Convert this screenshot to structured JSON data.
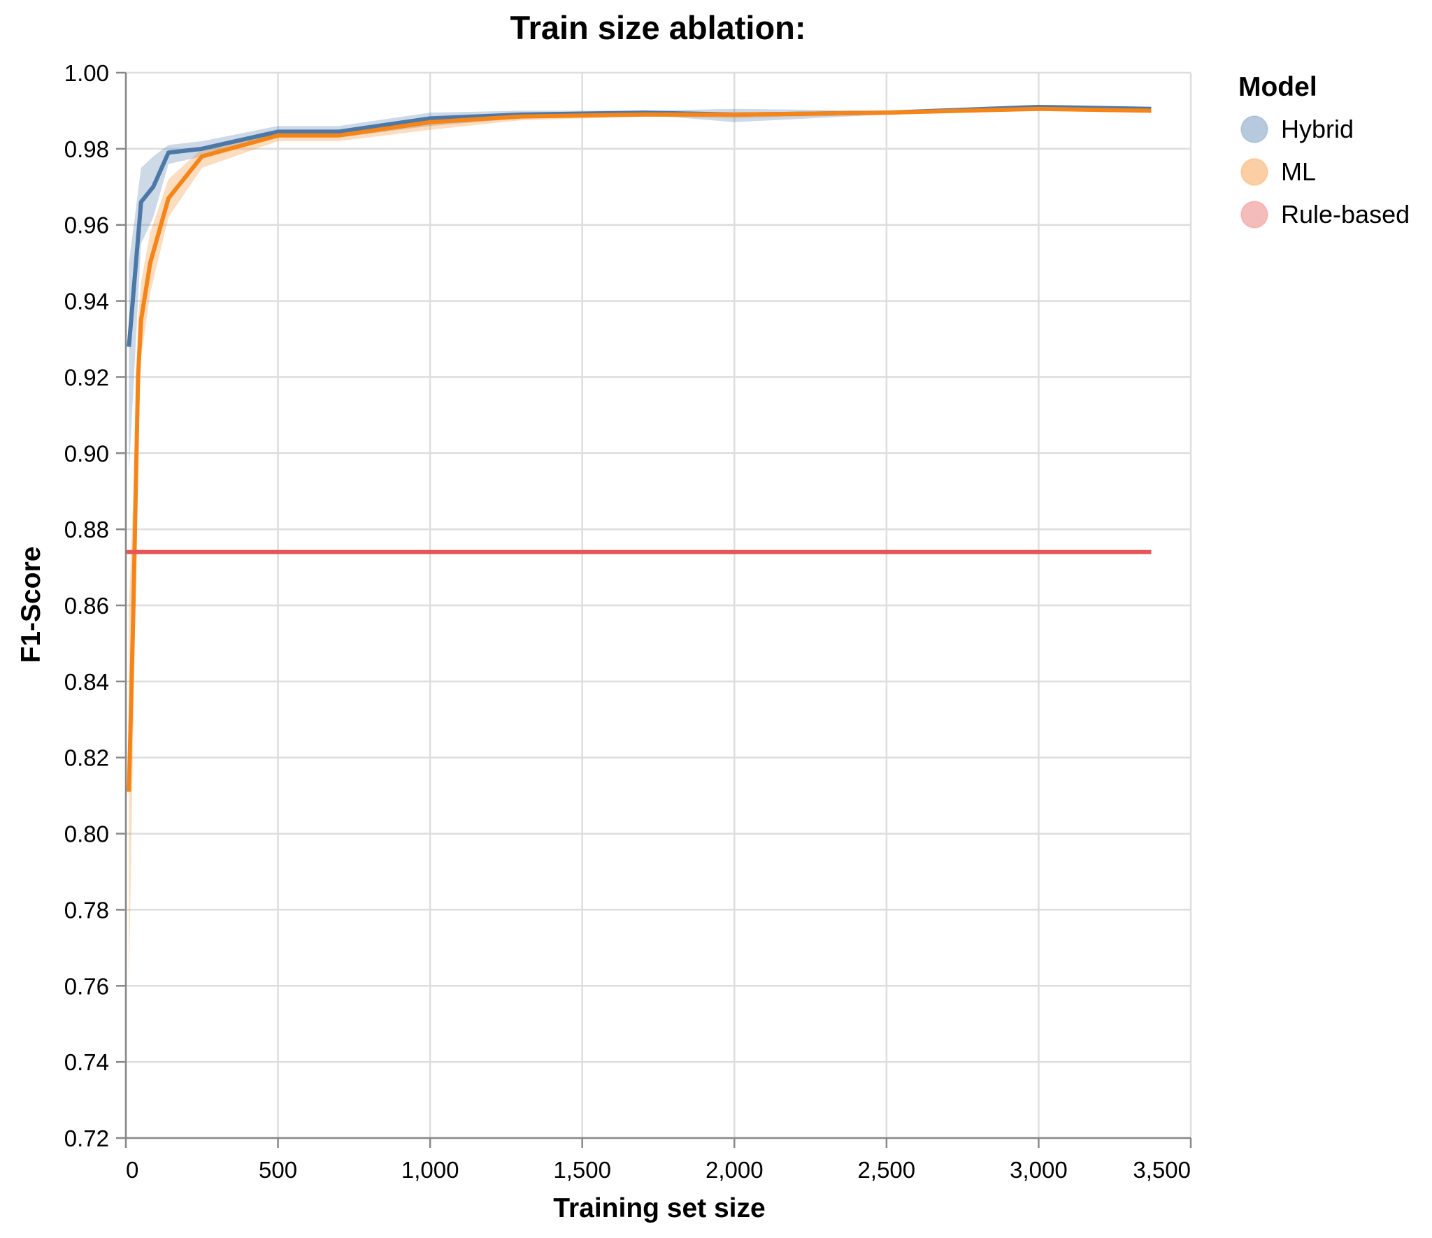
{
  "chart_data": {
    "type": "line",
    "title": "Train size ablation:",
    "xlabel": "Training set size",
    "ylabel": "F1-Score",
    "xlim": [
      0,
      3500
    ],
    "ylim": [
      0.72,
      1.0
    ],
    "x_ticks": [
      0,
      500,
      1000,
      1500,
      2000,
      2500,
      3000,
      3500
    ],
    "x_tick_labels": [
      "0",
      "500",
      "1,000",
      "1,500",
      "2,000",
      "2,500",
      "3,000",
      "3,500"
    ],
    "y_ticks": [
      0.72,
      0.74,
      0.76,
      0.78,
      0.8,
      0.82,
      0.84,
      0.86,
      0.88,
      0.9,
      0.92,
      0.94,
      0.96,
      0.98,
      1.0
    ],
    "y_tick_labels": [
      "0.72",
      "0.74",
      "0.76",
      "0.78",
      "0.80",
      "0.82",
      "0.84",
      "0.86",
      "0.88",
      "0.90",
      "0.92",
      "0.94",
      "0.96",
      "0.98",
      "1.00"
    ],
    "grid": true,
    "legend": {
      "title": "Model",
      "position": "right"
    },
    "series": [
      {
        "name": "Hybrid",
        "color": "#4c78a8",
        "x": [
          10,
          50,
          90,
          140,
          250,
          500,
          700,
          1000,
          1300,
          1700,
          2000,
          2500,
          3000,
          3370
        ],
        "y": [
          0.928,
          0.966,
          0.97,
          0.979,
          0.98,
          0.9845,
          0.9845,
          0.988,
          0.989,
          0.9895,
          0.989,
          0.9895,
          0.991,
          0.9905
        ],
        "ci_low": [
          0.895,
          0.955,
          0.962,
          0.976,
          0.978,
          0.983,
          0.983,
          0.986,
          0.988,
          0.989,
          0.987,
          0.989,
          0.9905,
          0.99
        ],
        "ci_high": [
          0.95,
          0.975,
          0.978,
          0.981,
          0.982,
          0.986,
          0.986,
          0.9895,
          0.99,
          0.99,
          0.9905,
          0.99,
          0.9915,
          0.991
        ]
      },
      {
        "name": "ML",
        "color": "#f58518",
        "x": [
          10,
          25,
          40,
          50,
          80,
          140,
          250,
          500,
          700,
          1000,
          1300,
          1700,
          2000,
          2500,
          3000,
          3370
        ],
        "y": [
          0.811,
          0.86,
          0.92,
          0.935,
          0.95,
          0.967,
          0.978,
          0.9835,
          0.9835,
          0.987,
          0.9885,
          0.989,
          0.989,
          0.9895,
          0.9905,
          0.99
        ],
        "ci_low": [
          0.76,
          0.83,
          0.9,
          0.925,
          0.942,
          0.962,
          0.975,
          0.982,
          0.982,
          0.985,
          0.9875,
          0.9885,
          0.988,
          0.989,
          0.99,
          0.9895
        ],
        "ci_high": [
          0.86,
          0.89,
          0.935,
          0.945,
          0.958,
          0.972,
          0.98,
          0.985,
          0.985,
          0.9885,
          0.989,
          0.9895,
          0.9895,
          0.99,
          0.991,
          0.9905
        ]
      },
      {
        "name": "Rule-based",
        "color": "#e45756",
        "x": [
          0,
          3370
        ],
        "y": [
          0.874,
          0.874
        ]
      }
    ]
  }
}
